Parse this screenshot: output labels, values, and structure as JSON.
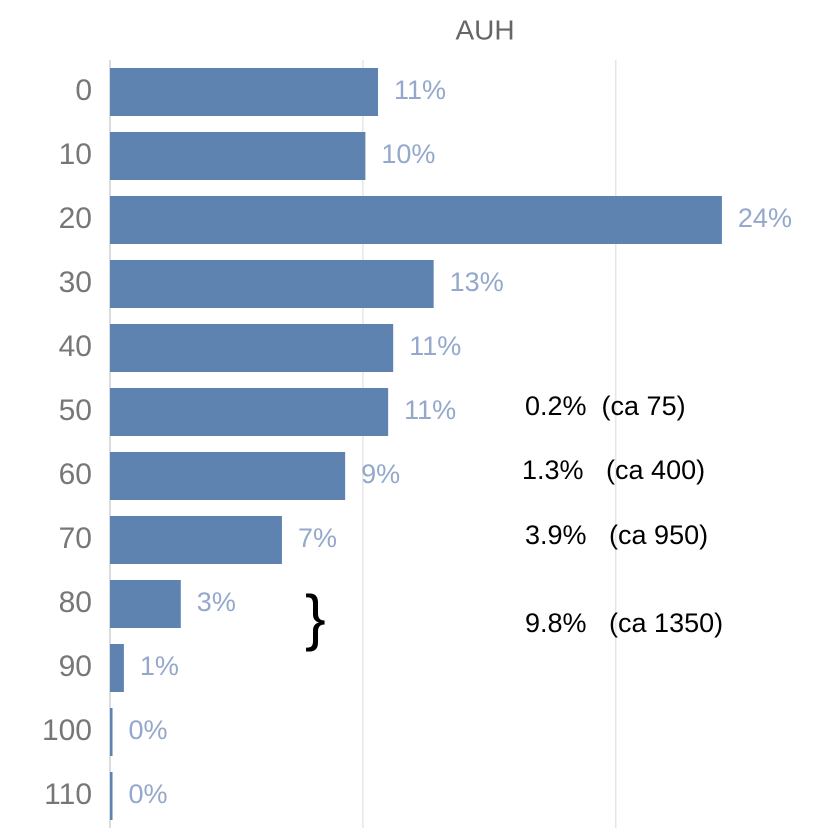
{
  "chart_data": {
    "type": "bar",
    "orientation": "horizontal",
    "title": "AUH",
    "categories": [
      "0",
      "10",
      "20",
      "30",
      "40",
      "50",
      "60",
      "70",
      "80",
      "90",
      "100",
      "110"
    ],
    "values": [
      10.6,
      10.1,
      24.2,
      12.8,
      11.2,
      11.0,
      9.3,
      6.8,
      2.8,
      0.55,
      0.1,
      0.1
    ],
    "value_labels": [
      "11%",
      "10%",
      "24%",
      "13%",
      "11%",
      "11%",
      "9%",
      "7%",
      "3%",
      "1%",
      "0%",
      "0%"
    ],
    "color": "#5f83b1",
    "xlim": [
      0,
      28
    ],
    "xticks": [
      10,
      20
    ],
    "grid": true,
    "annotations": [
      "0.2%  (ca 75)",
      "1.3%   (ca 400)",
      "3.9%   (ca 950)",
      "}",
      "9.8%   (ca 1350)"
    ]
  }
}
